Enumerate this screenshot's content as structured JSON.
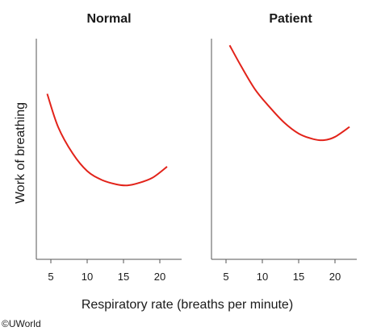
{
  "chart_data": {
    "type": "line",
    "ylabel": "Work of breathing",
    "xlabel": "Respiratory rate (breaths per minute)",
    "x_ticks": [
      5,
      10,
      15,
      20
    ],
    "y_ticks_shown": false,
    "panels": [
      {
        "title": "Normal",
        "xlim": [
          3,
          23
        ],
        "ylim": [
          0,
          100
        ],
        "series": [
          {
            "color": "#e2231a",
            "x": [
              4.5,
              6,
              8,
              10,
              12,
              14,
              15.5,
              17,
              19,
              21
            ],
            "y": [
              75,
              60,
              48,
              40,
              36,
              34,
              33.5,
              34.5,
              37,
              42
            ]
          }
        ]
      },
      {
        "title": "Patient",
        "xlim": [
          3,
          23
        ],
        "ylim": [
          0,
          100
        ],
        "series": [
          {
            "color": "#e2231a",
            "x": [
              5.5,
              7,
              9,
              11,
              13,
              15,
              17,
              18.5,
              20,
              22
            ],
            "y": [
              97,
              88,
              77,
              69,
              62,
              57,
              54.5,
              54,
              55.5,
              60
            ]
          }
        ]
      }
    ]
  },
  "copyright": "©UWorld"
}
